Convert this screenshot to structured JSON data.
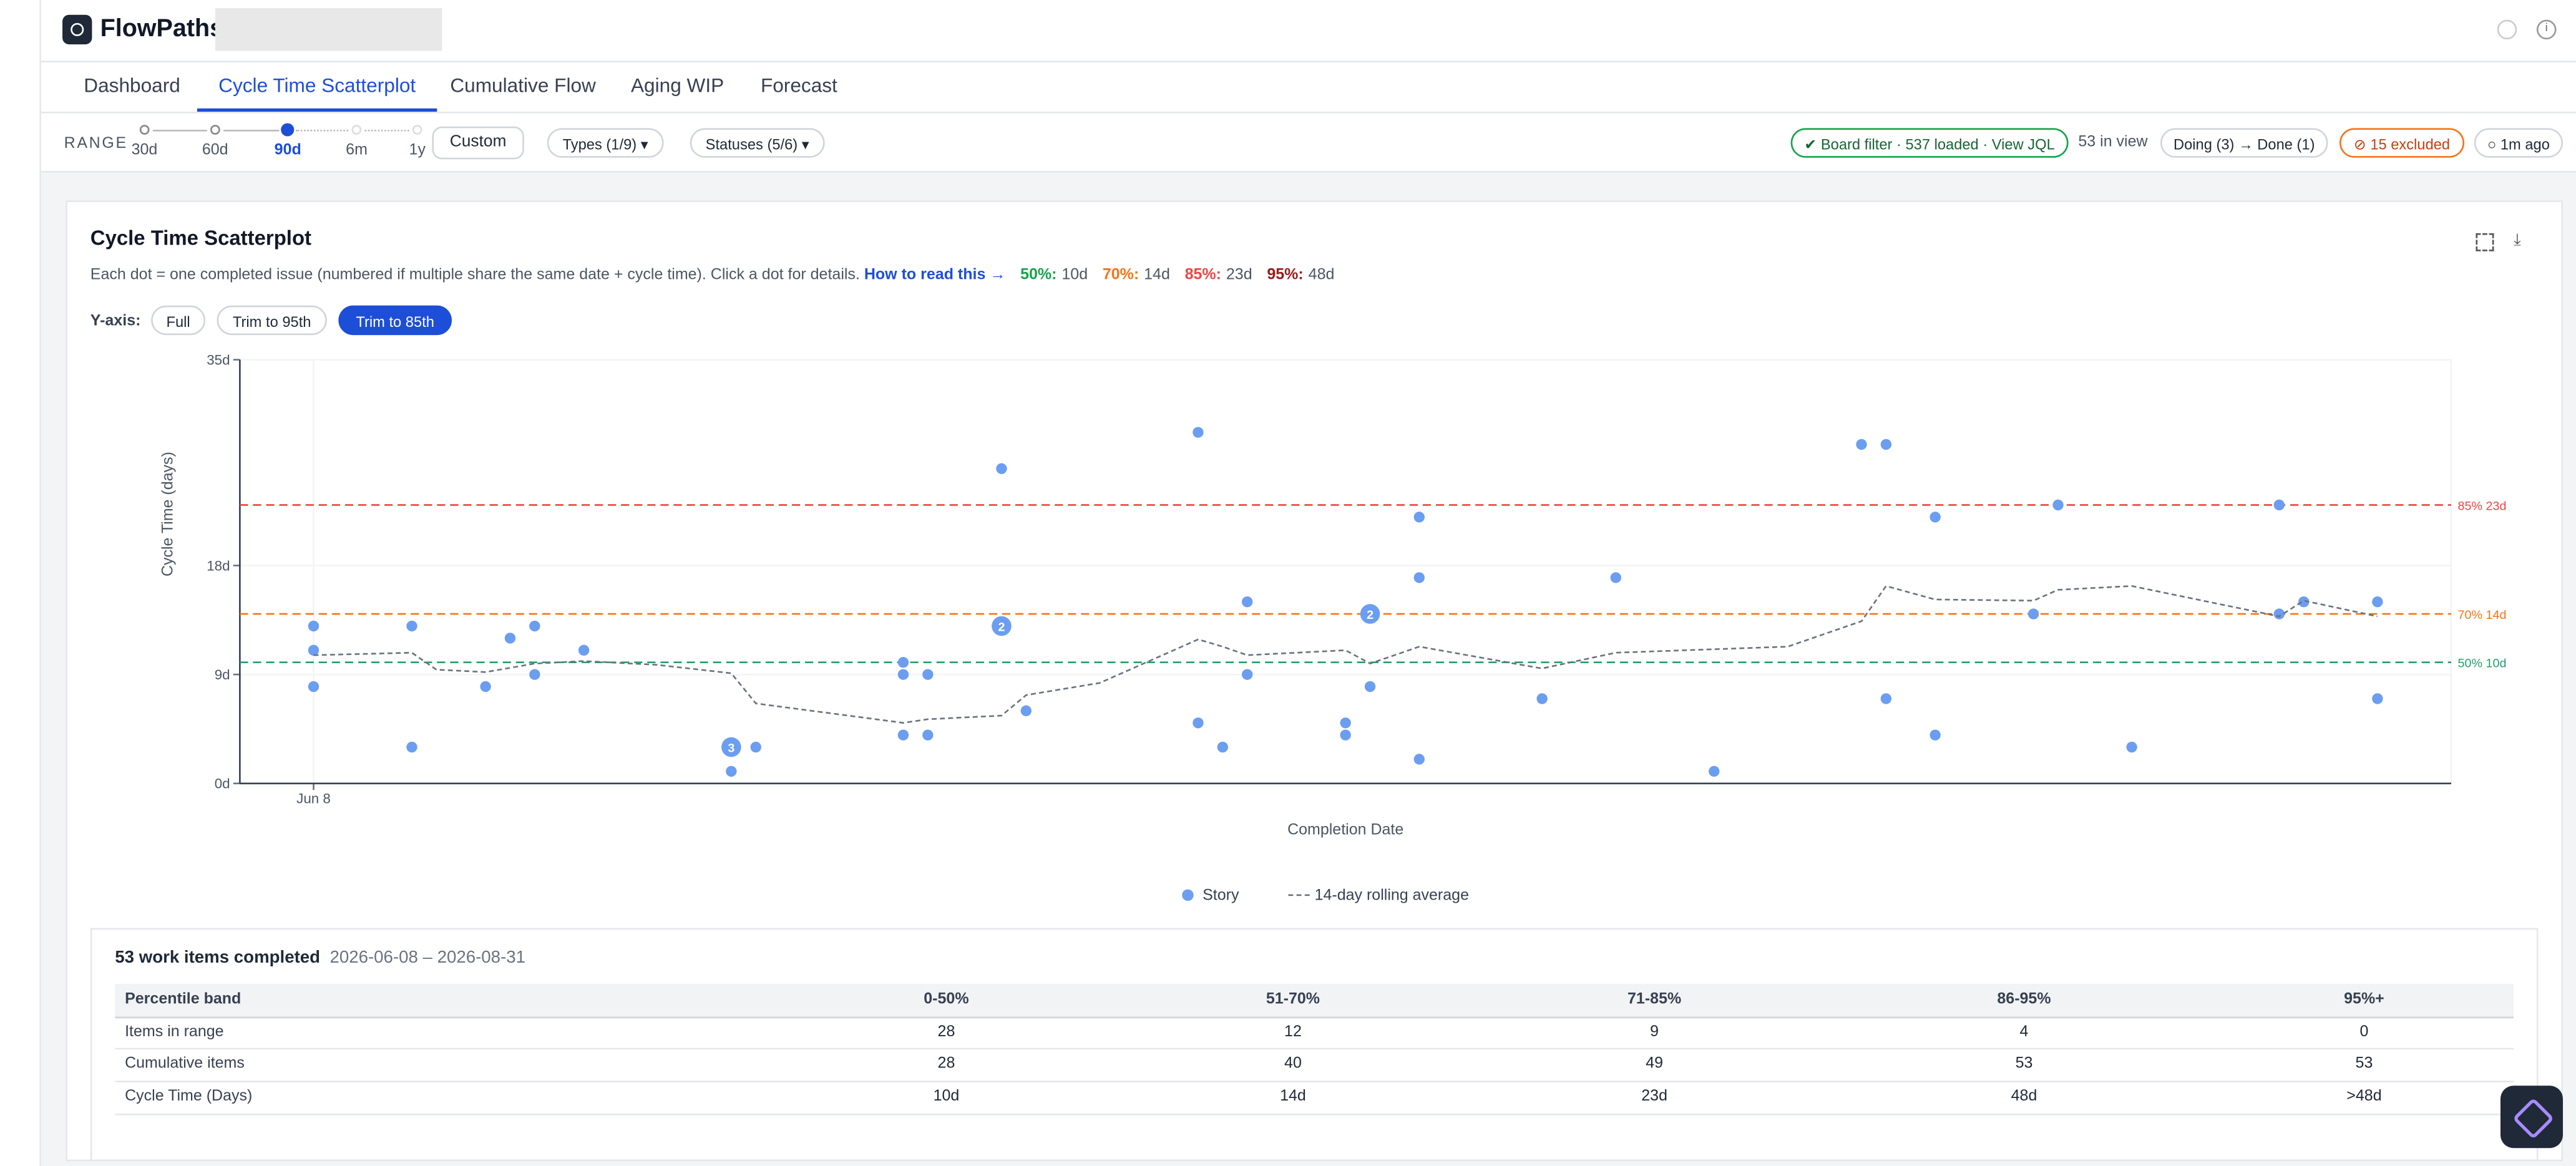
{
  "header": {
    "brand": "FlowPaths"
  },
  "nav": {
    "tabs": [
      "Dashboard",
      "Cycle Time Scatterplot",
      "Cumulative Flow",
      "Aging WIP",
      "Forecast"
    ],
    "active": 1
  },
  "range": {
    "label": "RANGE",
    "options": [
      "30d",
      "60d",
      "90d",
      "6m",
      "1y"
    ],
    "active": 2,
    "custom": "Custom",
    "types": "Types (1/9) ▾",
    "statuses": "Statuses (5/6) ▾"
  },
  "status": {
    "board_filter": "✔ Board filter · 537 loaded · View JQL",
    "in_view": "53 in view",
    "flow": "Doing (3) → Done (1)",
    "excluded": "⊘ 15 excluded",
    "updated": "○ 1m ago"
  },
  "panel": {
    "title": "Cycle Time Scatterplot",
    "description": "Each dot = one completed issue (numbered if multiple share the same date + cycle time). Click a dot for details.",
    "help_link": "How to read this →",
    "percentile_summary": [
      {
        "label": "50%:",
        "value": "10d",
        "color": "#16a34a"
      },
      {
        "label": "70%:",
        "value": "14d",
        "color": "#f97316"
      },
      {
        "label": "85%:",
        "value": "23d",
        "color": "#ef4444"
      },
      {
        "label": "95%:",
        "value": "48d",
        "color": "#991b1b"
      }
    ],
    "yaxis_label": "Y-axis:",
    "yaxis_options": [
      "Full",
      "Trim to 95th",
      "Trim to 85th"
    ],
    "yaxis_active": 2
  },
  "chart_data": {
    "type": "scatter",
    "xlabel": "Completion Date",
    "ylabel": "Cycle Time (days)",
    "xlim": [
      "2026-06-05",
      "2026-09-03"
    ],
    "xticks": [
      {
        "value": "2026-06-08",
        "label": "Jun 8"
      }
    ],
    "ylim": [
      0,
      35
    ],
    "yticks": [
      {
        "value": 0,
        "label": "0d"
      },
      {
        "value": 9,
        "label": "9d"
      },
      {
        "value": 18,
        "label": "18d"
      },
      {
        "value": 35,
        "label": "35d"
      }
    ],
    "grid": true,
    "thresholds": [
      {
        "value": 23,
        "label": "85% 23d",
        "color": "#ef4444"
      },
      {
        "value": 14,
        "label": "70% 14d",
        "color": "#f97316"
      },
      {
        "value": 10,
        "label": "50% 10d",
        "color": "#22a06b"
      }
    ],
    "series": [
      {
        "name": "Story",
        "color": "#6b9ef0",
        "x": [
          "2026-06-08",
          "2026-06-08",
          "2026-06-08",
          "2026-06-12",
          "2026-06-12",
          "2026-06-15",
          "2026-06-16",
          "2026-06-17",
          "2026-06-17",
          "2026-06-19",
          "2026-06-25",
          "2026-06-25",
          "2026-06-26",
          "2026-07-02",
          "2026-07-02",
          "2026-07-02",
          "2026-07-03",
          "2026-07-03",
          "2026-07-06",
          "2026-07-06",
          "2026-07-07",
          "2026-07-14",
          "2026-07-14",
          "2026-07-15",
          "2026-07-16",
          "2026-07-16",
          "2026-07-20",
          "2026-07-20",
          "2026-07-21",
          "2026-07-21",
          "2026-07-23",
          "2026-07-23",
          "2026-07-23",
          "2026-07-28",
          "2026-07-31",
          "2026-08-04",
          "2026-08-10",
          "2026-08-11",
          "2026-08-11",
          "2026-08-13",
          "2026-08-13",
          "2026-08-17",
          "2026-08-18",
          "2026-08-21",
          "2026-08-27",
          "2026-08-27",
          "2026-08-28",
          "2026-08-31",
          "2026-08-31"
        ],
        "values": [
          13,
          11,
          8,
          13,
          3,
          8,
          12,
          13,
          9,
          11,
          3,
          1,
          3,
          10,
          9,
          4,
          9,
          4,
          26,
          13,
          6,
          29,
          5,
          3,
          15,
          9,
          5,
          4,
          14,
          8,
          22,
          17,
          2,
          7,
          17,
          1,
          28,
          28,
          7,
          22,
          4,
          14,
          23,
          3,
          14,
          23,
          15,
          7,
          15
        ],
        "counts": [
          1,
          1,
          1,
          1,
          1,
          1,
          1,
          1,
          1,
          1,
          3,
          1,
          1,
          1,
          1,
          1,
          1,
          1,
          1,
          2,
          1,
          1,
          1,
          1,
          1,
          1,
          1,
          1,
          2,
          1,
          1,
          1,
          1,
          1,
          1,
          1,
          1,
          1,
          1,
          1,
          1,
          1,
          1,
          1,
          1,
          1,
          1,
          1,
          1
        ]
      },
      {
        "name": "14-day rolling average",
        "color": "#6b7280",
        "dashed": true,
        "x": [
          "2026-06-08",
          "2026-06-12",
          "2026-06-13",
          "2026-06-15",
          "2026-06-17",
          "2026-06-19",
          "2026-06-22",
          "2026-06-25",
          "2026-06-26",
          "2026-07-02",
          "2026-07-03",
          "2026-07-06",
          "2026-07-07",
          "2026-07-10",
          "2026-07-14",
          "2026-07-15",
          "2026-07-16",
          "2026-07-20",
          "2026-07-21",
          "2026-07-23",
          "2026-07-28",
          "2026-07-31",
          "2026-08-07",
          "2026-08-10",
          "2026-08-11",
          "2026-08-13",
          "2026-08-17",
          "2026-08-18",
          "2026-08-21",
          "2026-08-27",
          "2026-08-28",
          "2026-08-31"
        ],
        "values": [
          10.6,
          10.8,
          9.4,
          9.2,
          9.9,
          10.1,
          9.8,
          9.1,
          6.6,
          5.0,
          5.3,
          5.6,
          7.3,
          8.3,
          11.9,
          11.3,
          10.6,
          11.0,
          9.9,
          11.3,
          9.5,
          10.8,
          11.3,
          13.4,
          16.3,
          15.2,
          15.1,
          16.0,
          16.3,
          13.8,
          15.1,
          13.8
        ]
      }
    ]
  },
  "summary": {
    "title": "53 work items completed",
    "dates": "2026-06-08 – 2026-08-31"
  },
  "table": {
    "columns": [
      "Percentile band",
      "0-50%",
      "51-70%",
      "71-85%",
      "86-95%",
      "95%+"
    ],
    "rows": [
      [
        "Items in range",
        28,
        12,
        9,
        4,
        0
      ],
      [
        "Cumulative items",
        28,
        40,
        49,
        53,
        53
      ],
      [
        "Cycle Time (Days)",
        "10d",
        "14d",
        "23d",
        "48d",
        ">48d"
      ]
    ]
  }
}
